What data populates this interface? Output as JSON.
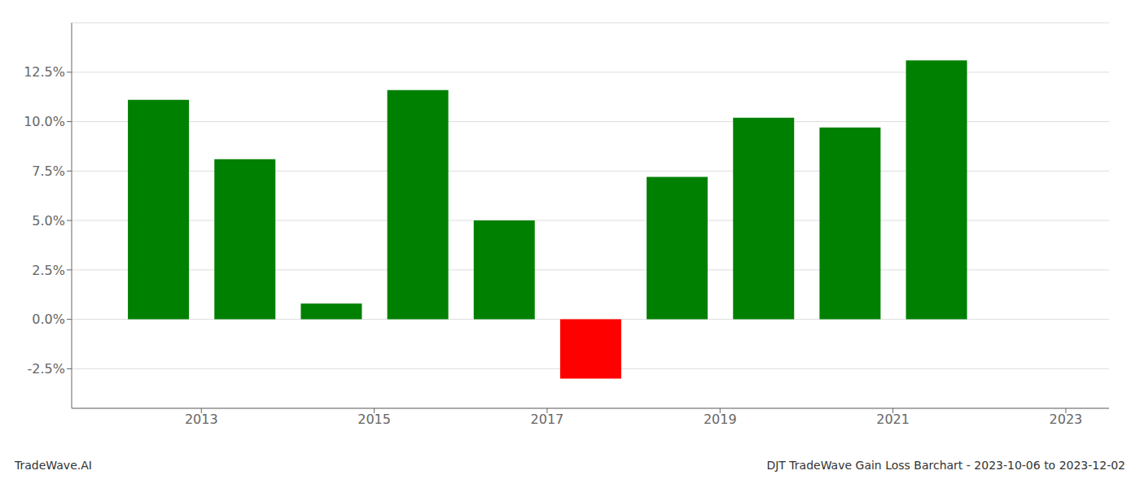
{
  "chart_data": {
    "type": "bar",
    "x": [
      2012.5,
      2013.5,
      2014.5,
      2015.5,
      2016.5,
      2017.5,
      2018.5,
      2019.5,
      2020.5,
      2021.5
    ],
    "values": [
      0.111,
      0.081,
      0.008,
      0.116,
      0.05,
      -0.03,
      0.072,
      0.102,
      0.097,
      0.131
    ],
    "colors": [
      "#008000",
      "#008000",
      "#008000",
      "#008000",
      "#008000",
      "#FF0000",
      "#008000",
      "#008000",
      "#008000",
      "#008000"
    ],
    "xlim": [
      2011.5,
      2023.5
    ],
    "xticks": [
      2013,
      2015,
      2017,
      2019,
      2021,
      2023
    ],
    "ylim": [
      -0.045,
      0.15
    ],
    "yticks": [
      {
        "value": -0.025,
        "label": "-2.5%"
      },
      {
        "value": 0.0,
        "label": "0.0%"
      },
      {
        "value": 0.025,
        "label": "2.5%"
      },
      {
        "value": 0.05,
        "label": "5.0%"
      },
      {
        "value": 0.075,
        "label": "7.5%"
      },
      {
        "value": 0.1,
        "label": "10.0%"
      },
      {
        "value": 0.125,
        "label": "12.5%"
      }
    ],
    "grid": true,
    "annotations": [
      "TradeWave.AI",
      "DJT TradeWave Gain Loss Barchart - 2023-10-06 to 2023-12-02"
    ]
  }
}
